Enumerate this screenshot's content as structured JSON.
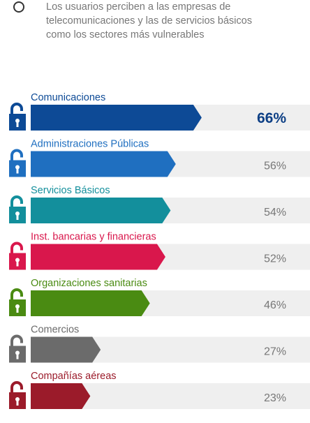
{
  "intro": {
    "text": "Los usuarios perciben a las empresas de telecomunicaciones y las de servicios básicos como los sectores más vulnerables"
  },
  "icons": {
    "row_icon": "padlock-open-icon",
    "option_icon": "radio-button-icon"
  },
  "chart_data": {
    "type": "bar",
    "orientation": "horizontal",
    "title": "",
    "xlabel": "",
    "ylabel": "",
    "xlim": [
      0,
      100
    ],
    "grid": false,
    "legend": "none",
    "categories": [
      "Comunicaciones",
      "Administraciones Públicas",
      "Servicios Básicos",
      "Inst. bancarias y financieras",
      "Organizaciones sanitarias",
      "Comercios",
      "Compañías aéreas"
    ],
    "values": [
      66,
      56,
      54,
      52,
      46,
      27,
      23
    ],
    "value_labels": [
      "66%",
      "56%",
      "54%",
      "52%",
      "46%",
      "27%",
      "23%"
    ],
    "colors": [
      "#0d4a96",
      "#1f6fc0",
      "#138f9c",
      "#d9174c",
      "#4a8b12",
      "#6b6b6b",
      "#9b1b2a"
    ],
    "track_color": "#efefef",
    "emphasis_index": 0
  }
}
